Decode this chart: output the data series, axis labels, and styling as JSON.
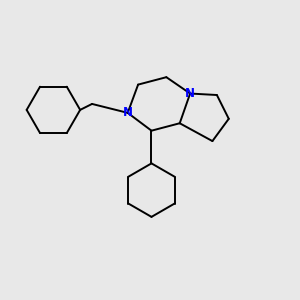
{
  "background_color": "#e8e8e8",
  "bond_color": "#000000",
  "nitrogen_color": "#0000ff",
  "line_width": 1.4,
  "figsize": [
    3.0,
    3.0
  ],
  "dpi": 100,
  "font_size": 8.5
}
